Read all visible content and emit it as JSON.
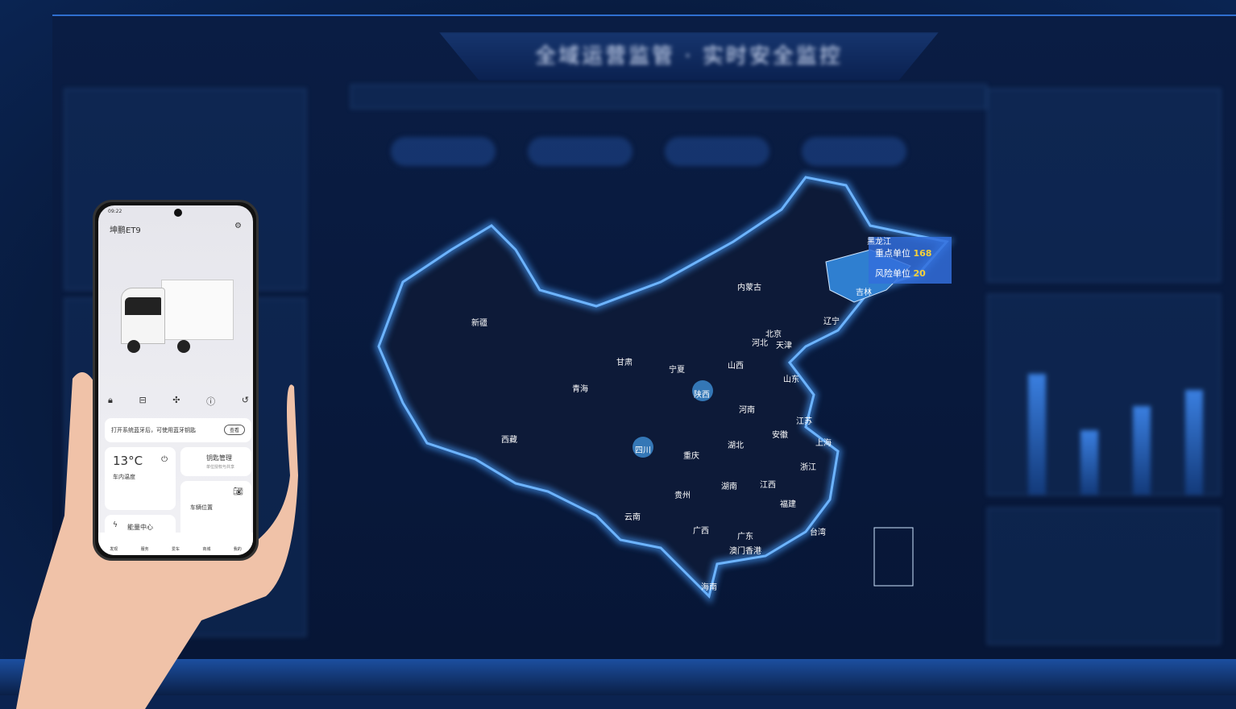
{
  "dashboard": {
    "title": "全域运营监管 · 实时安全监控"
  },
  "map": {
    "provinces": [
      "新疆",
      "西藏",
      "青海",
      "甘肃",
      "内蒙古",
      "宁夏",
      "陕西",
      "山西",
      "河北",
      "北京",
      "天津",
      "辽宁",
      "吉林",
      "黑龙江",
      "山东",
      "河南",
      "江苏",
      "安徽",
      "上海",
      "湖北",
      "四川",
      "重庆",
      "贵州",
      "云南",
      "湖南",
      "江西",
      "浙江",
      "福建",
      "广西",
      "广东",
      "澳门",
      "香港",
      "台湾",
      "海南"
    ],
    "highlight_color": "#2f7fd0",
    "tooltip": {
      "province": "黑龙江",
      "key_label": "重点单位",
      "key_value": "168",
      "risk_label": "风险单位",
      "risk_value": "20"
    }
  },
  "phone": {
    "status_time": "09:22",
    "app_title": "坤鹏ET9",
    "controls": [
      "lock-icon",
      "horn-icon",
      "fan-icon",
      "charge-icon",
      "trunk-icon"
    ],
    "bluetooth_notice": "打开系统蓝牙后，可使用蓝牙钥匙",
    "bluetooth_button": "查看",
    "temp": "13°C",
    "temp_label": "车内温度",
    "key_title": "钥匙管理",
    "key_sub": "单位授权与共享",
    "location_label": "车辆位置",
    "energy_label": "能量中心",
    "nav": [
      "发现",
      "服务",
      "爱车",
      "商城",
      "我的"
    ]
  }
}
